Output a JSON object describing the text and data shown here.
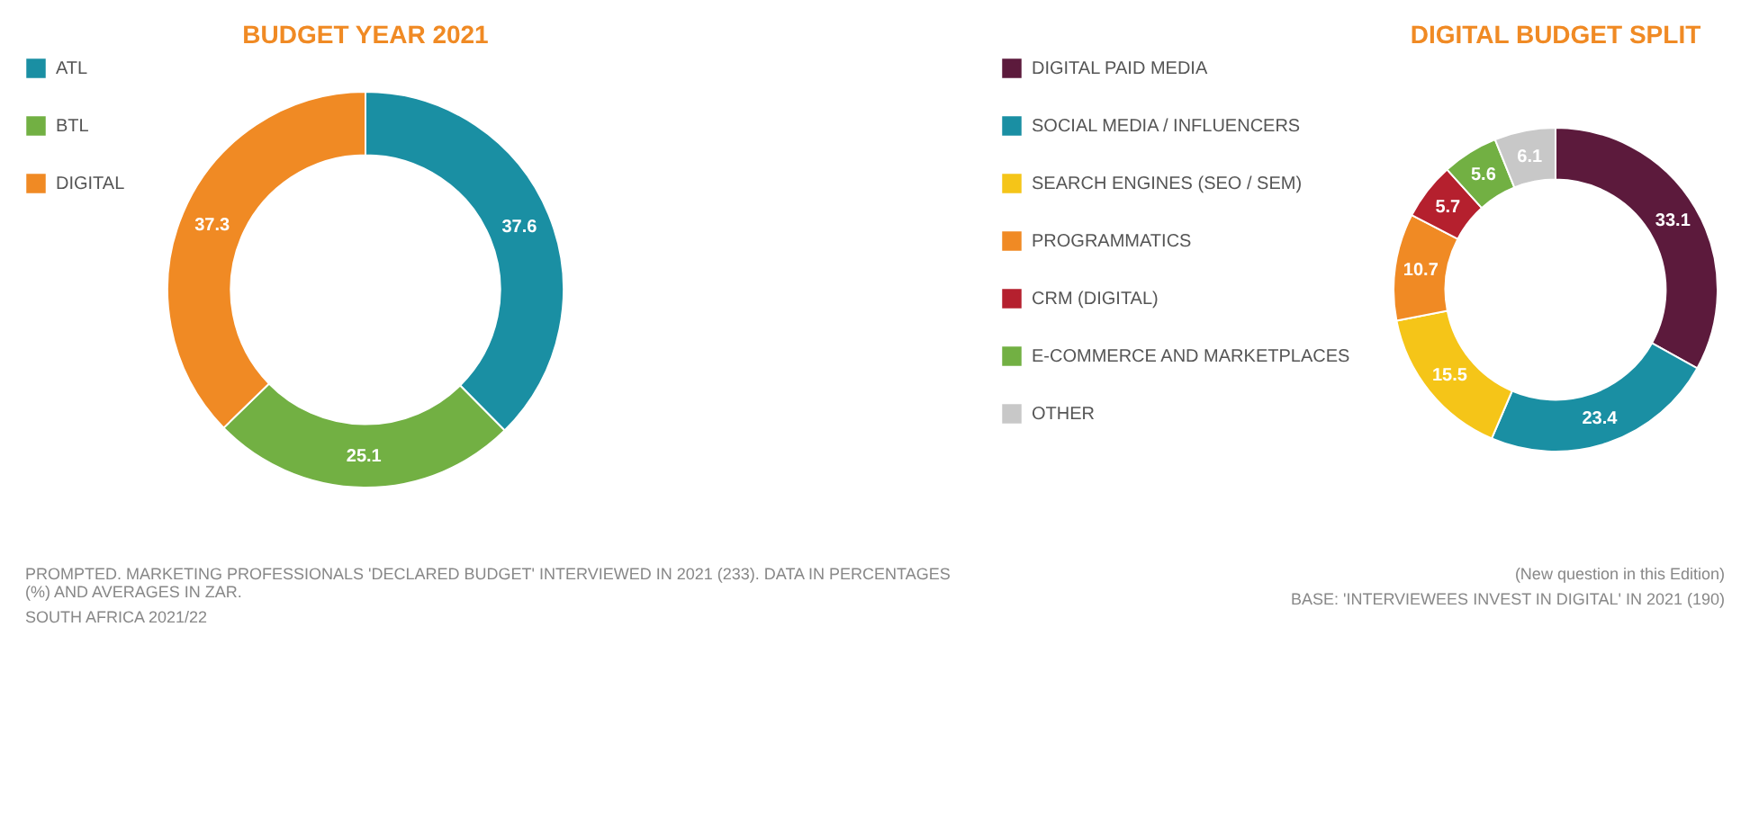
{
  "chart_data": [
    {
      "type": "donut",
      "title": "BUDGET YEAR 2021",
      "categories": [
        "ATL",
        "BTL",
        "DIGITAL"
      ],
      "values": [
        37.6,
        25.1,
        37.3
      ],
      "colors": [
        "#1a8fa3",
        "#72b043",
        "#f08a24"
      ],
      "data_labels": true,
      "legend": "left",
      "annotations": [
        "PROMPTED. MARKETING PROFESSIONALS 'DECLARED BUDGET' INTERVIEWED IN 2021 (233). DATA IN PERCENTAGES (%) AND AVERAGES IN ZAR.",
        "SOUTH AFRICA 2021/22"
      ]
    },
    {
      "type": "donut",
      "title": "DIGITAL BUDGET SPLIT",
      "categories": [
        "DIGITAL PAID MEDIA",
        "SOCIAL MEDIA / INFLUENCERS",
        "SEARCH ENGINES (SEO / SEM)",
        "PROGRAMMATICS",
        "CRM (DIGITAL)",
        "E-COMMERCE AND MARKETPLACES",
        "OTHER"
      ],
      "values": [
        33.1,
        23.4,
        15.5,
        10.7,
        5.7,
        5.6,
        6.1
      ],
      "colors": [
        "#5c1a3c",
        "#1a8fa3",
        "#f5c518",
        "#f08a24",
        "#b5202e",
        "#72b043",
        "#c8c8c8"
      ],
      "data_labels": true,
      "legend": "left",
      "annotations": [
        "(New question in this Edition)",
        "BASE: 'INTERVIEWEES INVEST IN DIGITAL' IN 2021 (190)"
      ]
    }
  ]
}
